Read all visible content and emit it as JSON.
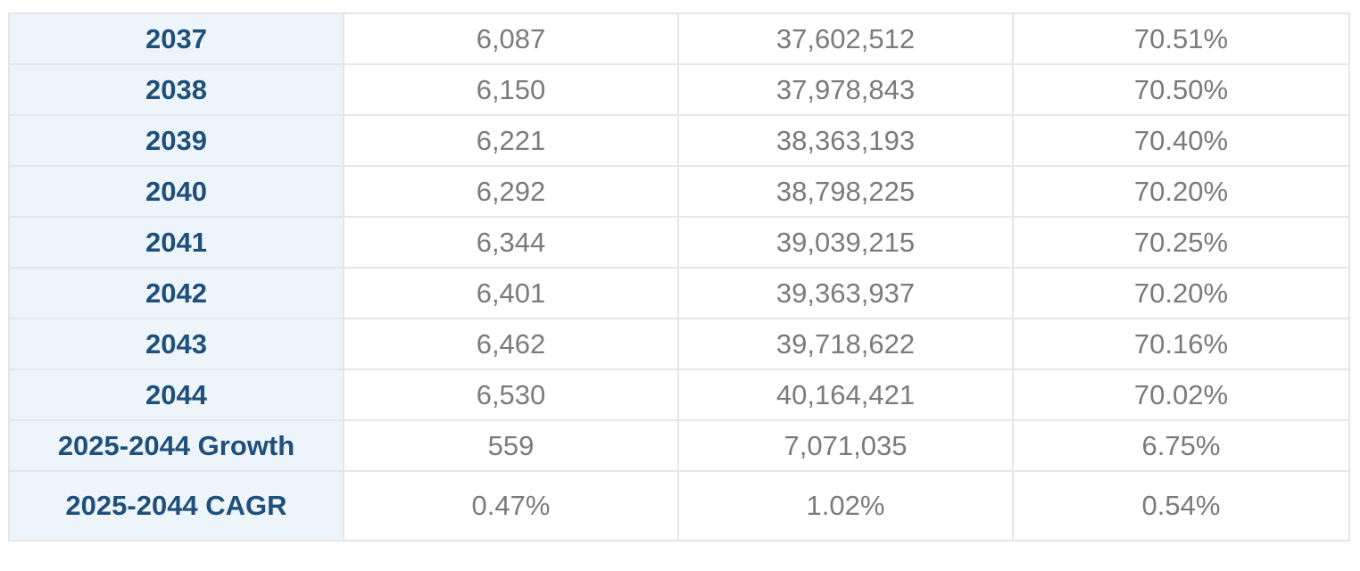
{
  "rows": [
    {
      "year": "2037",
      "col1": "6,087",
      "col2": "37,602,512",
      "col3": "70.51%"
    },
    {
      "year": "2038",
      "col1": "6,150",
      "col2": "37,978,843",
      "col3": "70.50%"
    },
    {
      "year": "2039",
      "col1": "6,221",
      "col2": "38,363,193",
      "col3": "70.40%"
    },
    {
      "year": "2040",
      "col1": "6,292",
      "col2": "38,798,225",
      "col3": "70.20%"
    },
    {
      "year": "2041",
      "col1": "6,344",
      "col2": "39,039,215",
      "col3": "70.25%"
    },
    {
      "year": "2042",
      "col1": "6,401",
      "col2": "39,363,937",
      "col3": "70.20%"
    },
    {
      "year": "2043",
      "col1": "6,462",
      "col2": "39,718,622",
      "col3": "70.16%"
    },
    {
      "year": "2044",
      "col1": "6,530",
      "col2": "40,164,421",
      "col3": "70.02%"
    },
    {
      "year": "2025-2044 Growth",
      "col1": "559",
      "col2": "7,071,035",
      "col3": "6.75%"
    },
    {
      "year": "2025-2044 CAGR",
      "col1": "0.47%",
      "col2": "1.02%",
      "col3": "0.54%"
    }
  ]
}
